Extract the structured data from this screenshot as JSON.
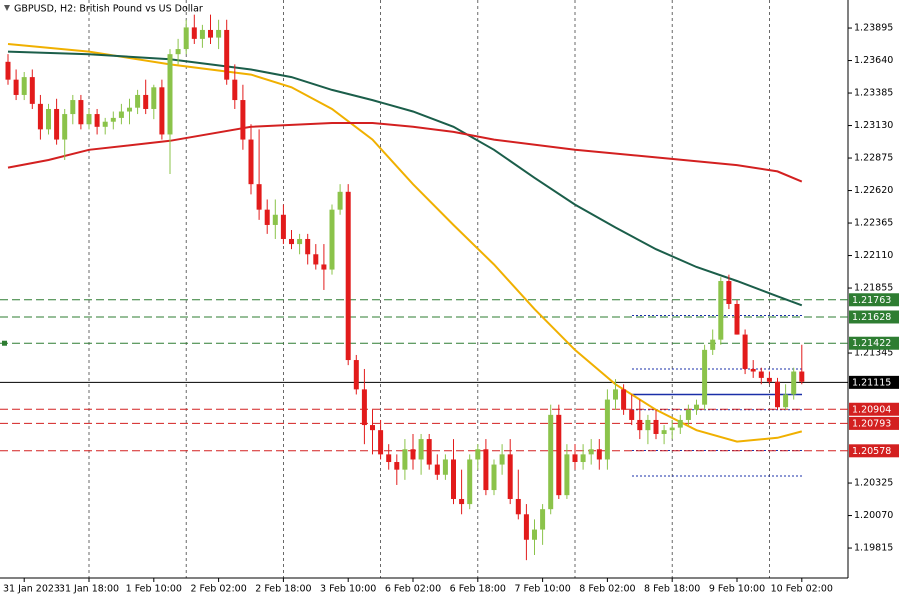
{
  "chart_data": {
    "type": "candlestick",
    "title": "GBPUSD, H2:  British Pound vs US Dollar",
    "categories": [
      null,
      null,
      "31 Jan 2023",
      null,
      null,
      null,
      null,
      null,
      null,
      null,
      "31 Jan 18:00",
      null,
      null,
      null,
      null,
      null,
      null,
      null,
      "1 Feb 10:00",
      null,
      null,
      null,
      null,
      null,
      null,
      null,
      "2 Feb 02:00",
      null,
      null,
      null,
      null,
      null,
      null,
      null,
      "2 Feb 18:00",
      null,
      null,
      null,
      null,
      null,
      null,
      null,
      "3 Feb 10:00",
      null,
      null,
      null,
      null,
      null,
      null,
      null,
      "6 Feb 02:00",
      null,
      null,
      null,
      null,
      null,
      null,
      null,
      "6 Feb 18:00",
      null,
      null,
      null,
      null,
      null,
      null,
      null,
      "7 Feb 10:00",
      null,
      null,
      null,
      null,
      null,
      null,
      null,
      "8 Feb 02:00",
      null,
      null,
      null,
      null,
      null,
      null,
      null,
      "8 Feb 18:00",
      null,
      null,
      null,
      null,
      null,
      null,
      null,
      "9 Feb 10:00",
      null,
      null,
      null,
      null,
      null,
      null,
      null,
      "10 Feb 02:00"
    ],
    "open": [
      1.2363,
      1.2349,
      1.2337,
      1.2351,
      1.233,
      1.231,
      1.2326,
      1.2302,
      1.2322,
      1.2333,
      1.2314,
      1.2322,
      1.2312,
      1.2316,
      1.2319,
      1.2324,
      1.2327,
      1.2337,
      1.2326,
      1.2343,
      1.2306,
      1.2369,
      1.2373,
      1.239,
      1.2381,
      1.2388,
      1.2382,
      1.2388,
      1.2349,
      1.2333,
      1.2302,
      1.2267,
      1.2247,
      1.2235,
      1.2243,
      1.2224,
      1.222,
      1.2224,
      1.2212,
      1.2204,
      1.22,
      1.2247,
      1.2261,
      1.2129,
      1.2106,
      1.2078,
      1.2074,
      1.2055,
      1.2049,
      1.2043,
      1.2059,
      1.2051,
      1.2067,
      1.2047,
      1.2039,
      1.2051,
      1.202,
      1.2016,
      1.2051,
      1.2059,
      1.2027,
      1.2047,
      1.2055,
      1.202,
      1.2008,
      1.1988,
      1.1996,
      1.2012,
      1.2086,
      1.2023,
      1.2055,
      1.2049,
      1.2055,
      1.2059,
      1.2051,
      1.2098,
      1.2106,
      1.209,
      1.2082,
      1.2074,
      1.2082,
      1.2071,
      1.2074,
      1.2076,
      1.2082,
      1.209,
      1.2094,
      1.2137,
      1.2145,
      1.2191,
      1.2173,
      1.2149,
      1.2122,
      1.212,
      1.2115,
      1.2112,
      1.2092,
      1.2102,
      1.212
    ],
    "high": [
      1.2369,
      1.2357,
      1.2355,
      1.2357,
      1.2337,
      1.233,
      1.2334,
      1.2326,
      1.2337,
      1.2337,
      1.2326,
      1.2326,
      1.2319,
      1.2324,
      1.233,
      1.2334,
      1.2341,
      1.2349,
      1.2345,
      1.2349,
      1.2373,
      1.2381,
      1.2396,
      1.24,
      1.2392,
      1.24,
      1.2396,
      1.2396,
      1.2361,
      1.2345,
      1.2314,
      1.231,
      1.2255,
      1.2255,
      1.2251,
      1.2231,
      1.2228,
      1.2228,
      1.222,
      1.222,
      1.2251,
      1.2267,
      1.2267,
      1.2133,
      1.2122,
      1.209,
      1.2082,
      1.2063,
      1.2055,
      1.2067,
      1.2071,
      1.2071,
      1.2071,
      1.2055,
      1.2055,
      1.2067,
      1.2043,
      1.2055,
      1.2063,
      1.2067,
      1.2051,
      1.2063,
      1.2067,
      1.2043,
      1.2016,
      1.2004,
      1.2016,
      1.2094,
      1.2094,
      1.2063,
      1.2063,
      1.2063,
      1.2067,
      1.2067,
      1.2106,
      1.2114,
      1.211,
      1.2102,
      1.2098,
      1.2086,
      1.209,
      1.2078,
      1.2082,
      1.2086,
      1.2094,
      1.2098,
      1.2141,
      1.2153,
      1.2194,
      1.2196,
      1.2176,
      1.2153,
      1.2129,
      1.2123,
      1.212,
      1.2115,
      1.211,
      1.2123,
      1.2141
    ],
    "low": [
      1.2345,
      1.2333,
      1.2333,
      1.2326,
      1.2302,
      1.2306,
      1.2298,
      1.2286,
      1.2314,
      1.231,
      1.231,
      1.2306,
      1.2306,
      1.231,
      1.2314,
      1.2314,
      1.2322,
      1.2322,
      1.2318,
      1.2302,
      1.2275,
      1.2361,
      1.2369,
      1.2377,
      1.2374,
      1.2377,
      1.2373,
      1.2345,
      1.2326,
      1.2294,
      1.2259,
      1.2239,
      1.2228,
      1.2224,
      1.222,
      1.2216,
      1.2212,
      1.2204,
      1.22,
      1.2184,
      1.2196,
      1.2243,
      1.2125,
      1.2102,
      1.2063,
      1.2055,
      1.2051,
      1.2043,
      1.2031,
      1.2035,
      1.2043,
      1.2039,
      1.2043,
      1.2035,
      1.2035,
      1.2016,
      1.2008,
      1.2012,
      1.2043,
      1.2023,
      1.2023,
      1.2039,
      1.2016,
      1.2004,
      1.1972,
      1.1976,
      1.1984,
      1.2008,
      1.202,
      1.202,
      1.2043,
      1.2043,
      1.2047,
      1.2043,
      1.2043,
      1.209,
      1.2086,
      1.2078,
      1.2067,
      1.2063,
      1.2067,
      1.2063,
      1.2067,
      1.2071,
      1.2078,
      1.2086,
      1.209,
      1.2133,
      1.2141,
      1.2169,
      1.2149,
      1.2118,
      1.2115,
      1.211,
      1.211,
      1.209,
      1.209,
      1.2098,
      1.211
    ],
    "close": [
      1.2349,
      1.2337,
      1.2351,
      1.233,
      1.231,
      1.2326,
      1.2302,
      1.2322,
      1.2333,
      1.2314,
      1.2322,
      1.2312,
      1.2316,
      1.2319,
      1.2324,
      1.2327,
      1.2337,
      1.2326,
      1.2343,
      1.2306,
      1.2369,
      1.2373,
      1.239,
      1.2381,
      1.2388,
      1.2382,
      1.2388,
      1.2349,
      1.2333,
      1.2302,
      1.2267,
      1.2247,
      1.2235,
      1.2243,
      1.2224,
      1.222,
      1.2224,
      1.2212,
      1.2204,
      1.22,
      1.2247,
      1.2261,
      1.2129,
      1.2106,
      1.2078,
      1.2074,
      1.2055,
      1.2049,
      1.2043,
      1.2059,
      1.2051,
      1.2067,
      1.2047,
      1.2039,
      1.2051,
      1.202,
      1.2016,
      1.2051,
      1.2059,
      1.2027,
      1.2047,
      1.2055,
      1.202,
      1.2008,
      1.1988,
      1.1996,
      1.2012,
      1.2086,
      1.2023,
      1.2055,
      1.2049,
      1.2055,
      1.2059,
      1.2051,
      1.2098,
      1.2106,
      1.209,
      1.2082,
      1.2074,
      1.2082,
      1.2071,
      1.2074,
      1.2076,
      1.2082,
      1.209,
      1.2094,
      1.2137,
      1.2145,
      1.2191,
      1.2173,
      1.2149,
      1.2122,
      1.212,
      1.2115,
      1.2112,
      1.2092,
      1.2102,
      1.212,
      1.2112
    ],
    "up_color": "#8bc34a",
    "down_color": "#e21b1b",
    "overlays": [
      {
        "color": "#f0b000",
        "x": [
          0,
          10,
          20,
          30,
          35,
          40,
          45,
          50,
          55,
          60,
          65,
          70,
          75,
          80,
          85,
          90,
          95,
          98
        ],
        "values": [
          1.2377,
          1.2371,
          1.2361,
          1.2353,
          1.2343,
          1.2326,
          1.2302,
          1.2267,
          1.2235,
          1.2204,
          1.2169,
          1.2137,
          1.211,
          1.209,
          1.2074,
          1.2065,
          1.2068,
          1.2073
        ]
      },
      {
        "color": "#1b5e4a",
        "x": [
          0,
          10,
          20,
          30,
          35,
          40,
          45,
          50,
          55,
          60,
          65,
          70,
          75,
          80,
          85,
          90,
          95,
          98
        ],
        "values": [
          1.2371,
          1.2369,
          1.2365,
          1.2357,
          1.2351,
          1.2341,
          1.2333,
          1.2324,
          1.2312,
          1.2294,
          1.2272,
          1.2251,
          1.2233,
          1.2216,
          1.2202,
          1.2191,
          1.2179,
          1.2172
        ]
      },
      {
        "color": "#d32020",
        "x": [
          0,
          5,
          10,
          20,
          30,
          40,
          45,
          50,
          55,
          60,
          70,
          80,
          90,
          95,
          98
        ],
        "values": [
          1.228,
          1.2286,
          1.2294,
          1.2301,
          1.2312,
          1.2315,
          1.2315,
          1.2312,
          1.2308,
          1.2302,
          1.2294,
          1.2288,
          1.2282,
          1.2277,
          1.2269
        ]
      }
    ],
    "levels": [
      {
        "value": 1.21763,
        "color": "#2e7d32",
        "style": "dashed"
      },
      {
        "value": 1.21628,
        "color": "#2e7d32",
        "style": "dashed"
      },
      {
        "value": 1.21422,
        "color": "#2e7d32",
        "style": "dashed"
      },
      {
        "value": 1.21115,
        "color": "#000000",
        "style": "solid"
      },
      {
        "value": 1.20904,
        "color": "#d32020",
        "style": "dashed"
      },
      {
        "value": 1.20793,
        "color": "#d32020",
        "style": "dashed"
      },
      {
        "value": 1.20578,
        "color": "#d32020",
        "style": "dashed"
      }
    ],
    "drawn_lines": {
      "color": "#1a2fa8",
      "lines": [
        {
          "value": 1.2164,
          "style": "dotted"
        },
        {
          "value": 1.2122,
          "style": "dotted"
        },
        {
          "value": 1.2102,
          "style": "solid"
        },
        {
          "value": 1.209,
          "style": "dotted"
        },
        {
          "value": 1.2058,
          "style": "dotted"
        },
        {
          "value": 1.2038,
          "style": "dotted"
        }
      ]
    },
    "ylim": [
      1.1958,
      1.24115
    ],
    "yticks": [
      1.23895,
      {
        "value": 1.2364,
        "label": "1.23640"
      },
      1.23385,
      {
        "value": 1.2313,
        "label": "1.23130"
      },
      1.22875,
      {
        "value": 1.2262,
        "label": "1.22620"
      },
      1.22365,
      {
        "value": 1.2211,
        "label": "1.22110"
      },
      1.21855,
      1.21345,
      1.20325,
      {
        "value": 1.2007,
        "label": "1.20070"
      },
      1.19815
    ]
  }
}
